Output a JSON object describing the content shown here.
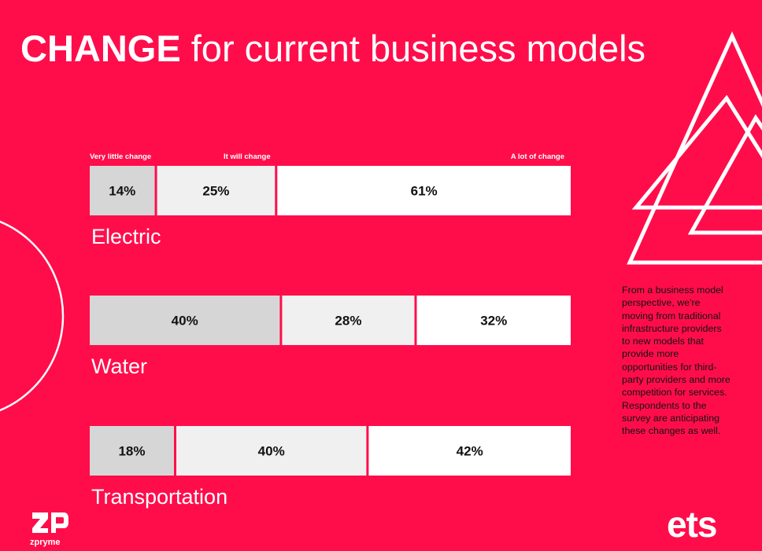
{
  "title": {
    "bold": "CHANGE",
    "rest": " for current business models"
  },
  "chart_data": {
    "type": "bar",
    "stacked": true,
    "orientation": "horizontal",
    "category_headers": [
      "Very little change",
      "It will change",
      "A lot of change"
    ],
    "categories": [
      "Electric",
      "Water",
      "Transportation"
    ],
    "series": [
      {
        "name": "Very little change",
        "values": [
          14,
          40,
          18
        ],
        "labels": [
          "14%",
          "40%",
          "18%"
        ]
      },
      {
        "name": "It will change",
        "values": [
          25,
          28,
          40
        ],
        "labels": [
          "25%",
          "28%",
          "40%"
        ]
      },
      {
        "name": "A lot of change",
        "values": [
          61,
          32,
          42
        ],
        "labels": [
          "61%",
          "32%",
          "42%"
        ]
      }
    ],
    "colors": [
      "#D6D6D6",
      "#F0F0F0",
      "#FFFFFF"
    ]
  },
  "note": "From a business model perspective, we're moving from traditional infrastructure providers to new models that provide more opportunities for third-party providers and more competition for services. Respondents to the survey are anticipating these changes as well.",
  "logos": {
    "left_text": "zpryme",
    "right_text": "ets"
  }
}
